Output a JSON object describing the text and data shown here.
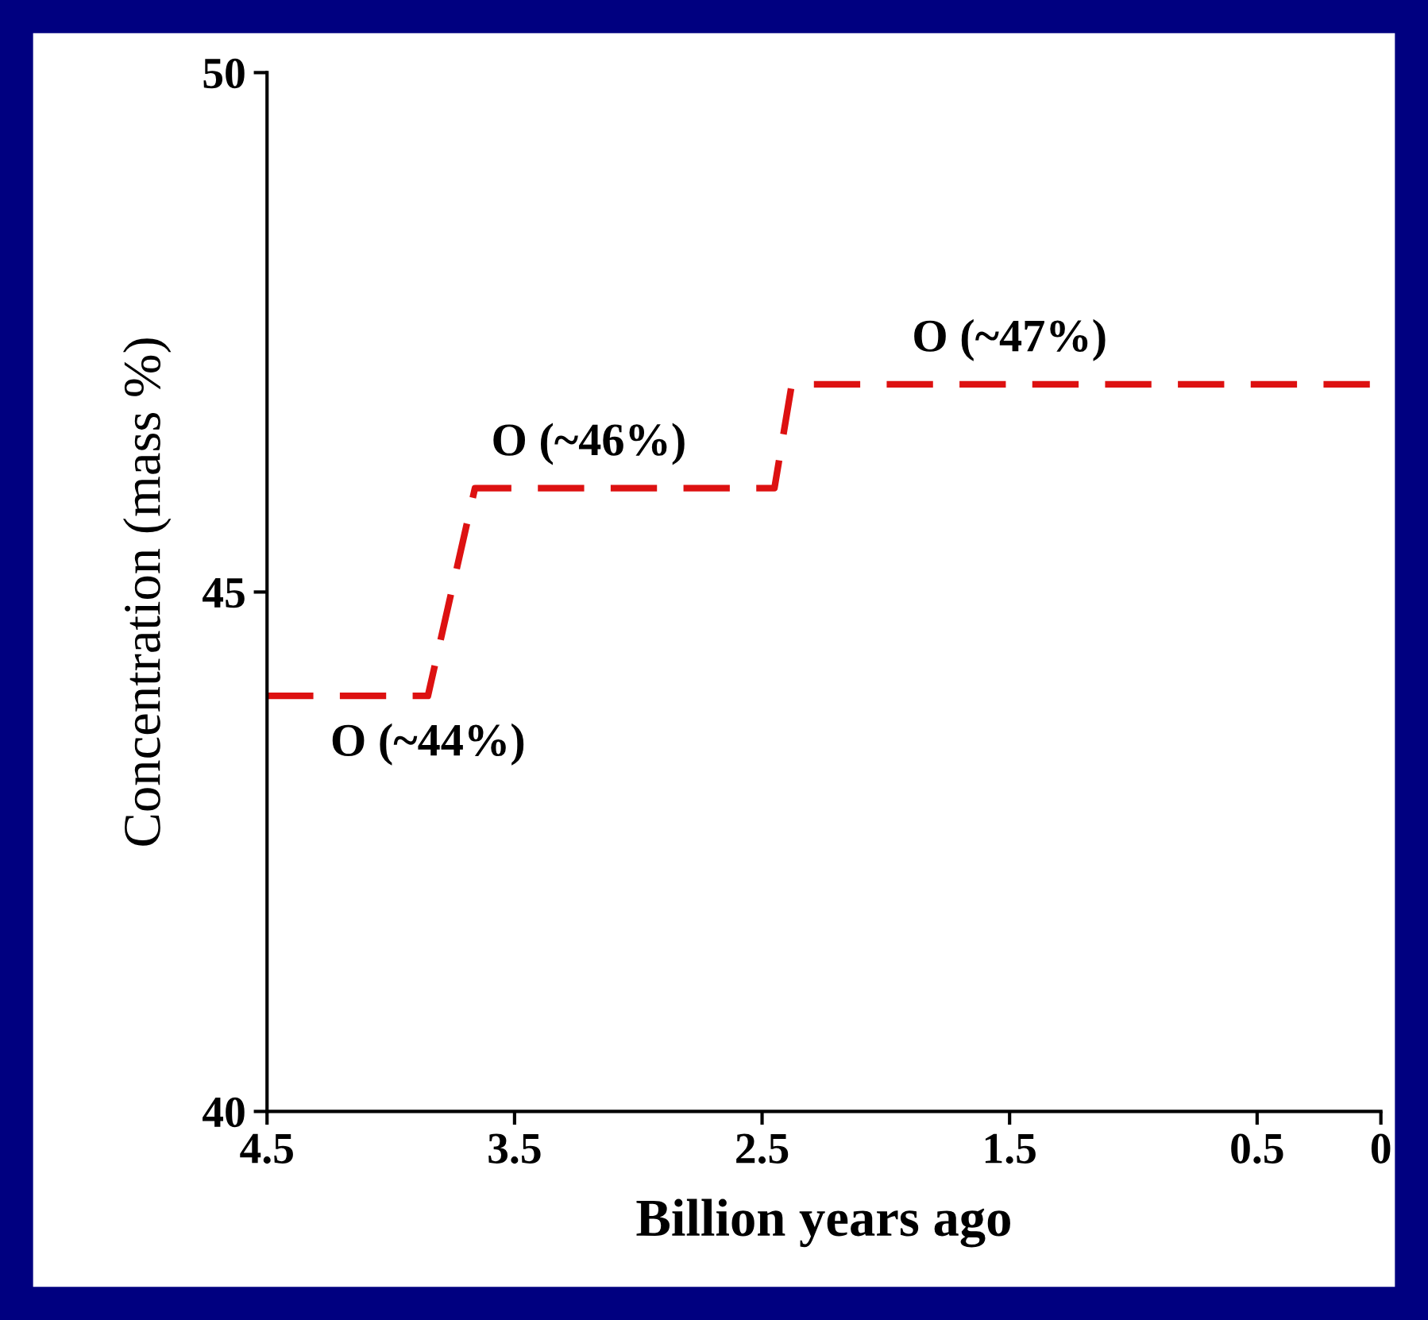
{
  "chart_data": {
    "type": "line",
    "xlabel": "Billion years ago",
    "ylabel": "Concentration (mass %)",
    "x": [
      4.5,
      3.85,
      3.66,
      2.45,
      2.38,
      0
    ],
    "series": [
      {
        "color": "#dd1111",
        "values": [
          44,
          44,
          46,
          46,
          47,
          47
        ]
      }
    ],
    "xlim": [
      4.5,
      0
    ],
    "xticks": [
      4.5,
      3.5,
      2.5,
      1.5,
      0.5,
      0
    ],
    "ylim": [
      40,
      50
    ],
    "yticks": [
      40,
      45,
      50
    ],
    "line_style": "dashed",
    "grid": false,
    "legend": false,
    "annotations": [
      {
        "text": "O (~44%)",
        "x": 3.85,
        "y": 44
      },
      {
        "text": "O (~46%)",
        "x": 3.2,
        "y": 46
      },
      {
        "text": "O (~47%)",
        "x": 1.5,
        "y": 47
      }
    ]
  }
}
